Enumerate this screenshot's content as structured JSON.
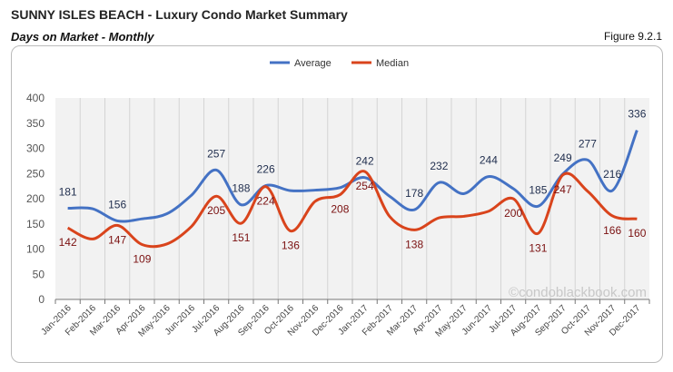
{
  "header": {
    "title": "SUNNY ISLES BEACH - Luxury Condo Market Summary",
    "subtitle": "Days on Market - Monthly",
    "figure": "Figure 9.2.1"
  },
  "watermark": "©condoblackbook.com",
  "chart_data": {
    "type": "line",
    "categories": [
      "Jan-2016",
      "Feb-2016",
      "Mar-2016",
      "Apr-2016",
      "May-2016",
      "Jun-2016",
      "Jul-2016",
      "Aug-2016",
      "Sep-2016",
      "Oct-2016",
      "Nov-2016",
      "Dec-2016",
      "Jan-2017",
      "Feb-2017",
      "Mar-2017",
      "Apr-2017",
      "May-2017",
      "Jun-2017",
      "Jul-2017",
      "Aug-2017",
      "Sep-2017",
      "Oct-2017",
      "Nov-2017",
      "Dec-2017"
    ],
    "ylim": [
      0,
      400
    ],
    "yticks": [
      0,
      50,
      100,
      150,
      200,
      250,
      300,
      350,
      400
    ],
    "grid": "vertical",
    "legend": "top-center",
    "series": [
      {
        "name": "Average",
        "color": "#4472c4",
        "labelColor": "#1f2d4d",
        "values": [
          181,
          180,
          156,
          160,
          170,
          207,
          257,
          188,
          226,
          216,
          217,
          222,
          242,
          205,
          178,
          232,
          210,
          244,
          220,
          185,
          249,
          277,
          216,
          336
        ],
        "labeled": [
          0,
          2,
          6,
          7,
          8,
          12,
          14,
          15,
          17,
          19,
          20,
          21,
          22,
          23
        ]
      },
      {
        "name": "Median",
        "color": "#d9441c",
        "labelColor": "#7a1010",
        "values": [
          142,
          120,
          147,
          109,
          110,
          145,
          205,
          151,
          224,
          136,
          195,
          208,
          254,
          165,
          138,
          162,
          165,
          175,
          200,
          131,
          247,
          215,
          166,
          160
        ],
        "labeled": [
          0,
          2,
          3,
          6,
          7,
          8,
          9,
          11,
          12,
          14,
          18,
          19,
          20,
          22,
          23
        ]
      }
    ]
  }
}
